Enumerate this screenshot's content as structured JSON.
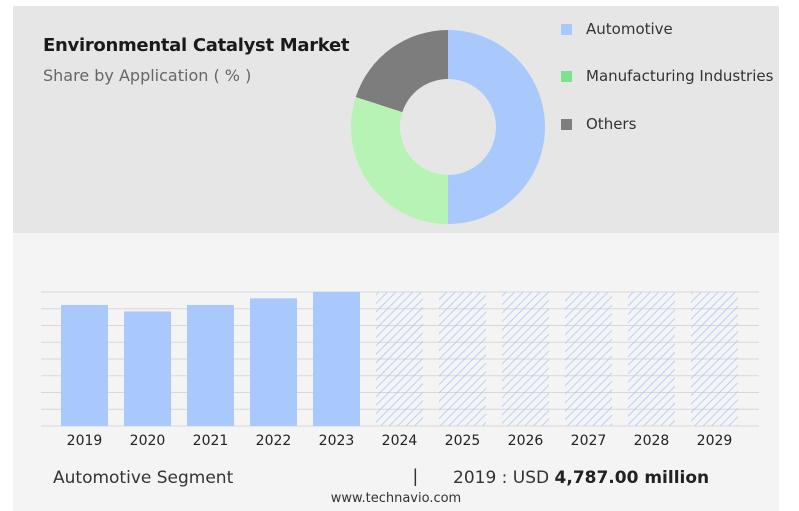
{
  "header": {
    "title": "Environmental Catalyst Market",
    "subtitle": "Share by Application ( % )"
  },
  "colors": {
    "automotive": "#a9c8fb",
    "manufacturing": "#b7f3b5",
    "others": "#7d7d7d",
    "legend_manufacturing": "#7de38a",
    "bar": "#a9c8fb",
    "hatch": "#a9c8fb"
  },
  "chart_data": [
    {
      "type": "pie",
      "subtype": "donut",
      "categories": [
        "Automotive",
        "Manufacturing Industries",
        "Others"
      ],
      "values": [
        50,
        30,
        20
      ],
      "legend_placement": "right"
    },
    {
      "type": "bar",
      "categories": [
        "2019",
        "2020",
        "2021",
        "2022",
        "2023",
        "2024",
        "2025",
        "2026",
        "2027",
        "2028",
        "2029"
      ],
      "values": [
        4787,
        4530,
        4787,
        5050,
        5300,
        5300,
        5300,
        5300,
        5300,
        5300,
        5300
      ],
      "forecast_from": "2024",
      "ylim": [
        0,
        5300
      ],
      "grid": true
    }
  ],
  "footer": {
    "segment_label": "Automotive Segment",
    "separator": "|",
    "value_prefix": "2019 : USD ",
    "value_amount": "4,787.00 million",
    "website": "www.technavio.com"
  }
}
